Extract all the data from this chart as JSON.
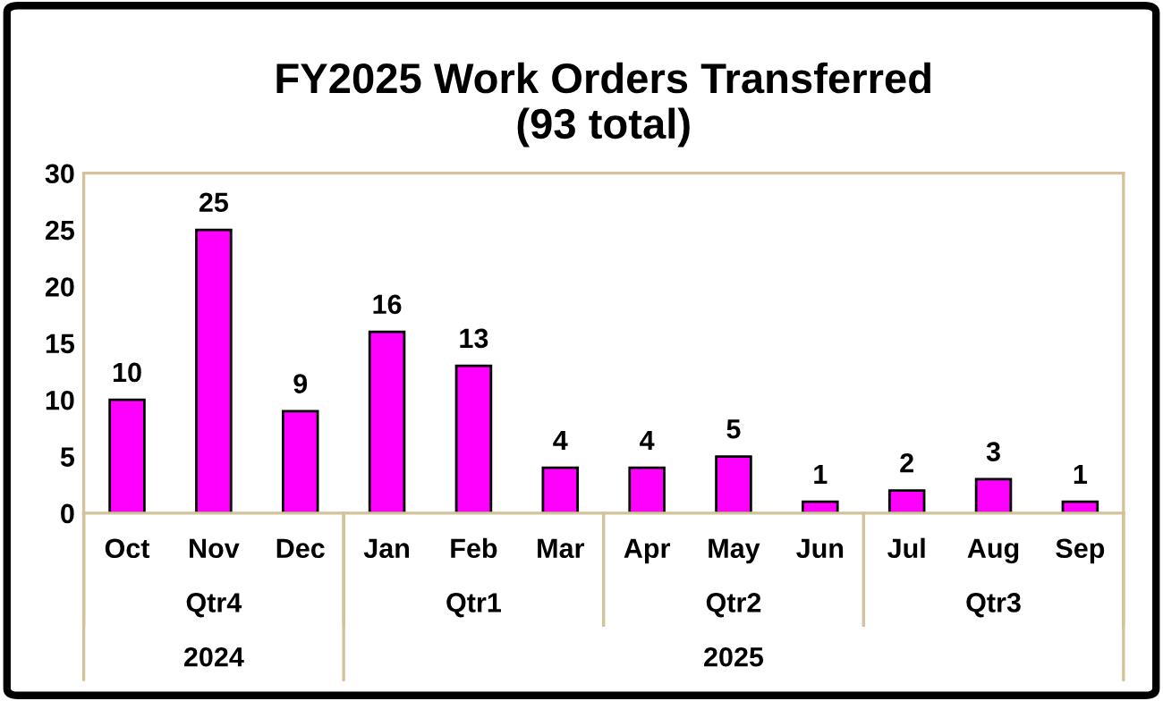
{
  "chart_data": {
    "type": "bar",
    "title": "FY2025 Work Orders Transferred\n(93 total)",
    "categories": [
      "Oct",
      "Nov",
      "Dec",
      "Jan",
      "Feb",
      "Mar",
      "Apr",
      "May",
      "Jun",
      "Jul",
      "Aug",
      "Sep"
    ],
    "values": [
      10,
      25,
      9,
      16,
      13,
      4,
      4,
      5,
      1,
      2,
      3,
      1
    ],
    "color": "#ff00ff",
    "ylim": [
      0,
      30
    ],
    "yticks": [
      0,
      5,
      10,
      15,
      20,
      25,
      30
    ],
    "data_labels": true,
    "grid": false,
    "legend": false,
    "annotations": [
      "Qtr4",
      "Qtr1",
      "Qtr2",
      "Qtr3",
      "2024",
      "2025"
    ]
  }
}
